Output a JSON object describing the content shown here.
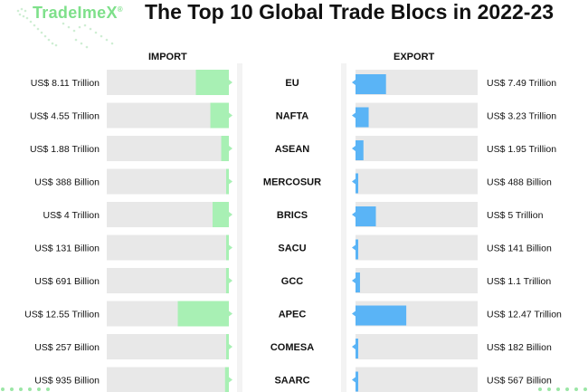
{
  "brand": {
    "logo_text": "TradeImeX",
    "registered_mark": "®"
  },
  "title": "The Top 10 Global Trade Blocs in 2022-23",
  "colors": {
    "import": "#a8f0b4",
    "export": "#5ab4f6",
    "track": "#e8e8e8",
    "brand": "#7ee08a"
  },
  "chart_data": {
    "type": "bar",
    "title": "The Top 10 Global Trade Blocs in 2022-23",
    "categories": [
      "EU",
      "NAFTA",
      "ASEAN",
      "MERCOSUR",
      "BRICS",
      "SACU",
      "GCC",
      "APEC",
      "COMESA",
      "SAARC"
    ],
    "series": [
      {
        "name": "IMPORT",
        "values_trillion_usd": [
          8.11,
          4.55,
          1.88,
          0.388,
          4,
          0.131,
          0.691,
          12.55,
          0.257,
          0.935
        ],
        "labels": [
          "US$ 8.11 Trillion",
          "US$ 4.55 Trillion",
          "US$ 1.88 Trillion",
          "US$ 388 Billion",
          "US$ 4 Trillion",
          "US$ 131 Billion",
          "US$ 691 Billion",
          "US$ 12.55 Trillion",
          "US$ 257 Billion",
          "US$ 935 Billion"
        ]
      },
      {
        "name": "EXPORT",
        "values_trillion_usd": [
          7.49,
          3.23,
          1.95,
          0.488,
          5,
          0.141,
          1.1,
          12.47,
          0.182,
          0.567
        ],
        "labels": [
          "US$ 7.49 Trillion",
          "US$ 3.23 Trillion",
          "US$ 1.95 Trillion",
          "US$ 488 Billion",
          "US$ 5 Trillion",
          "US$ 141 Billion",
          "US$ 1.1 Trillion",
          "US$ 12.47 Trillion",
          "US$ 182 Billion",
          "US$ 567 Billion"
        ]
      }
    ],
    "xlim": [
      0,
      30
    ]
  }
}
